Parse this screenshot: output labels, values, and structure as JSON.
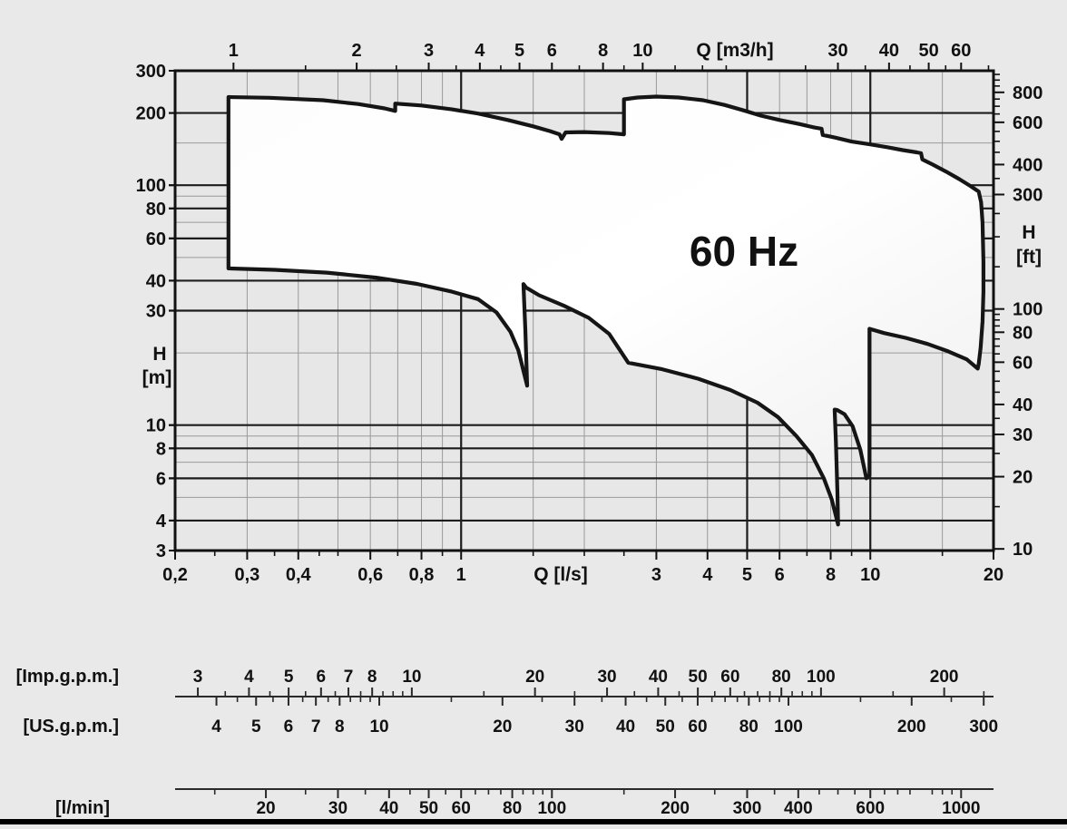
{
  "colors": {
    "background": "#e9e9e9",
    "plot_background": "#e7e7e7",
    "envelope_fill_light": "#fdfdfd",
    "envelope_fill_dark": "#eeeeee",
    "envelope_stroke": "#151515",
    "grid_thin": "#9a9a9a",
    "grid_thick": "#1c1c1c",
    "frame": "#111111",
    "scale_line": "#2a2a2a",
    "text": "#111111",
    "bottom_bar": "#000000"
  },
  "chart_data": {
    "type": "area",
    "description": "Pump performance range envelope, head H versus flow Q, log-log axes",
    "annotation": {
      "text": "60 Hz",
      "q_lps": 4.9,
      "h_m": 53
    },
    "x_axis_bottom": {
      "label": "Q  [l/s]",
      "unit": "l/s",
      "min": 0.2,
      "max": 20,
      "labeled": [
        {
          "v": 0.2,
          "t": "0,2"
        },
        {
          "v": 0.3,
          "t": "0,3"
        },
        {
          "v": 0.4,
          "t": "0,4"
        },
        {
          "v": 0.6,
          "t": "0,6"
        },
        {
          "v": 0.8,
          "t": "0,8"
        },
        {
          "v": 1,
          "t": "1"
        },
        {
          "v": 3,
          "t": "3"
        },
        {
          "v": 4,
          "t": "4"
        },
        {
          "v": 5,
          "t": "5"
        },
        {
          "v": 6,
          "t": "6"
        },
        {
          "v": 8,
          "t": "8"
        },
        {
          "v": 10,
          "t": "10"
        },
        {
          "v": 20,
          "t": "20"
        }
      ],
      "minor": [
        0.25,
        0.35,
        0.45,
        0.5,
        0.7,
        0.9,
        1.5,
        2,
        2.5,
        7,
        9,
        15
      ],
      "grid_thick": [
        1,
        5,
        10
      ],
      "grid_thin": [
        0.3,
        0.4,
        0.5,
        0.6,
        0.7,
        0.8,
        0.9,
        1.5,
        2,
        3,
        4,
        6,
        7,
        8,
        9,
        15
      ]
    },
    "x_axis_top": {
      "label": "Q [m3/h]",
      "unit": "m3/h",
      "factor_from_lps": 3.6,
      "labeled": [
        1,
        2,
        3,
        4,
        5,
        6,
        8,
        10,
        30,
        40,
        50,
        60
      ],
      "minor": [
        1.5,
        2.5,
        3.5,
        4.5,
        7,
        9,
        12,
        14,
        16,
        25,
        35,
        45,
        55,
        70
      ]
    },
    "y_axis_left": {
      "label_line1": "H",
      "label_line2": "[m]",
      "unit": "m",
      "min": 3,
      "max": 300,
      "labeled": [
        300,
        200,
        100,
        80,
        60,
        40,
        30,
        10,
        8,
        6,
        4,
        3
      ],
      "grid_thick": [
        4,
        6,
        8,
        10,
        30,
        40,
        60,
        80,
        100,
        200
      ],
      "grid_thin": [
        5,
        7,
        9,
        20,
        50,
        70,
        90,
        150
      ]
    },
    "y_axis_right": {
      "label_line1": "H",
      "label_line2": "[ft]",
      "unit": "ft",
      "factor_from_m": 3.2808,
      "labeled": [
        800,
        600,
        400,
        300,
        100,
        80,
        60,
        40,
        30,
        20,
        10
      ],
      "minor": [
        15,
        25,
        35,
        45,
        50,
        55,
        65,
        70,
        75,
        85,
        90,
        95,
        150,
        200,
        250,
        350,
        450,
        500,
        550,
        650,
        700,
        750,
        850,
        900,
        950
      ]
    },
    "envelope_points_q_h": [
      [
        0.27,
        45
      ],
      [
        0.27,
        233
      ],
      [
        0.34,
        231.5
      ],
      [
        0.46,
        226
      ],
      [
        0.56,
        218
      ],
      [
        0.65,
        209
      ],
      [
        0.69,
        204
      ],
      [
        0.69,
        219
      ],
      [
        0.8,
        215
      ],
      [
        0.95,
        207
      ],
      [
        1.1,
        199
      ],
      [
        1.3,
        187
      ],
      [
        1.5,
        176
      ],
      [
        1.65,
        168
      ],
      [
        1.74,
        163
      ],
      [
        1.76,
        156
      ],
      [
        1.8,
        166
      ],
      [
        2.0,
        166.5
      ],
      [
        2.3,
        165
      ],
      [
        2.5,
        163
      ],
      [
        2.5,
        228
      ],
      [
        2.7,
        232
      ],
      [
        3.0,
        234
      ],
      [
        3.4,
        232
      ],
      [
        3.9,
        226
      ],
      [
        4.4,
        216
      ],
      [
        4.9,
        205
      ],
      [
        5.4,
        195
      ],
      [
        6.0,
        187
      ],
      [
        6.7,
        180
      ],
      [
        7.3,
        174
      ],
      [
        7.6,
        172
      ],
      [
        7.65,
        162
      ],
      [
        8.2,
        158
      ],
      [
        9.0,
        152
      ],
      [
        10.0,
        148
      ],
      [
        11.0,
        144
      ],
      [
        12.0,
        140
      ],
      [
        13.0,
        137
      ],
      [
        13.3,
        136
      ],
      [
        13.4,
        128
      ],
      [
        14.2,
        122
      ],
      [
        15.3,
        114
      ],
      [
        16.5,
        106
      ],
      [
        17.6,
        99
      ],
      [
        18.4,
        94
      ],
      [
        18.65,
        85
      ],
      [
        18.8,
        70
      ],
      [
        18.9,
        48
      ],
      [
        18.9,
        36
      ],
      [
        18.8,
        27
      ],
      [
        18.6,
        21
      ],
      [
        18.4,
        18
      ],
      [
        18.3,
        17.2
      ],
      [
        17.2,
        18.8
      ],
      [
        15.5,
        20.3
      ],
      [
        13.8,
        21.8
      ],
      [
        12.2,
        23.1
      ],
      [
        10.8,
        24.2
      ],
      [
        9.95,
        25.2
      ],
      [
        9.95,
        6.2
      ],
      [
        9.78,
        6.0
      ],
      [
        9.45,
        7.9
      ],
      [
        9.05,
        9.9
      ],
      [
        8.65,
        11.1
      ],
      [
        8.3,
        11.55
      ],
      [
        8.18,
        11.6
      ],
      [
        8.24,
        8.5
      ],
      [
        8.31,
        5.2
      ],
      [
        8.34,
        3.85
      ],
      [
        8.05,
        4.9
      ],
      [
        7.7,
        6.0
      ],
      [
        7.2,
        7.5
      ],
      [
        6.6,
        9.0
      ],
      [
        5.95,
        10.8
      ],
      [
        5.3,
        12.4
      ],
      [
        4.55,
        14.0
      ],
      [
        3.8,
        15.6
      ],
      [
        3.1,
        17.1
      ],
      [
        2.56,
        18.2
      ],
      [
        2.3,
        24.0
      ],
      [
        2.05,
        28.0
      ],
      [
        1.78,
        31.5
      ],
      [
        1.55,
        34.8
      ],
      [
        1.44,
        37.5
      ],
      [
        1.42,
        38.7
      ],
      [
        1.435,
        25.0
      ],
      [
        1.45,
        14.6
      ],
      [
        1.38,
        20.5
      ],
      [
        1.32,
        24.5
      ],
      [
        1.22,
        29.5
      ],
      [
        1.1,
        33.5
      ],
      [
        0.95,
        36.0
      ],
      [
        0.78,
        38.8
      ],
      [
        0.62,
        41.2
      ],
      [
        0.47,
        43.2
      ],
      [
        0.35,
        44.4
      ],
      [
        0.27,
        45
      ]
    ]
  },
  "scales": {
    "imp": {
      "label": "[Imp.g.p.m.]",
      "lps_per_unit": 0.0757682,
      "labeled": [
        3,
        4,
        5,
        6,
        7,
        8,
        10,
        20,
        30,
        40,
        50,
        60,
        80,
        100,
        200
      ],
      "minor": [
        3.5,
        4.5,
        5.5,
        6.5,
        7.5,
        8.5,
        9,
        9.5,
        15,
        25,
        35,
        45,
        55,
        65,
        70,
        75,
        85,
        90,
        95,
        150,
        250
      ]
    },
    "us": {
      "label": "[US.g.p.m.]",
      "lps_per_unit": 0.0630902,
      "labeled": [
        4,
        5,
        6,
        7,
        8,
        10,
        20,
        30,
        40,
        50,
        60,
        80,
        100,
        200,
        300
      ],
      "minor": [
        4.5,
        5.5,
        6.5,
        7.5,
        8.5,
        9,
        9.5,
        15,
        25,
        35,
        45,
        55,
        65,
        70,
        75,
        85,
        90,
        95,
        150,
        250
      ]
    },
    "lmin": {
      "label": "[l/min]",
      "lps_per_unit": 0.0166667,
      "labeled": [
        20,
        30,
        40,
        50,
        60,
        80,
        100,
        200,
        300,
        400,
        600,
        1000
      ],
      "minor": [
        15,
        25,
        35,
        45,
        55,
        65,
        70,
        75,
        85,
        90,
        95,
        150,
        250,
        350,
        450,
        500,
        550,
        650,
        700,
        750,
        850,
        900,
        950
      ]
    }
  }
}
